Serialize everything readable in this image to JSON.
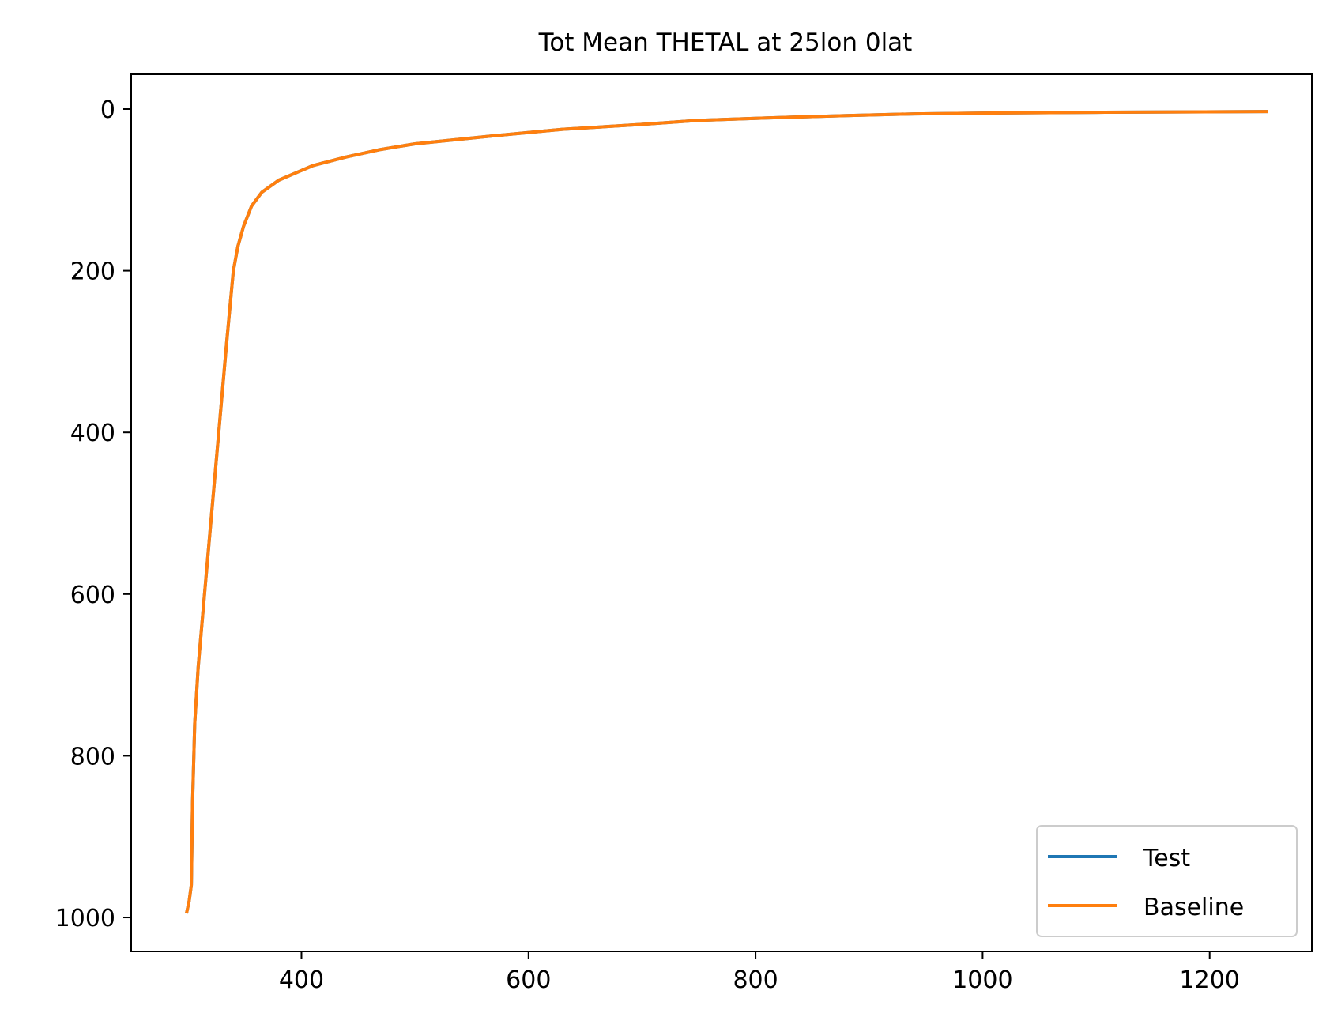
{
  "chart_data": {
    "type": "line",
    "title": "Tot Mean THETAL at 25lon 0lat",
    "xlabel": "",
    "ylabel": "",
    "xlim": [
      250,
      1290
    ],
    "ylim": [
      1042,
      -43
    ],
    "y_inverted": true,
    "xticks": [
      400,
      600,
      800,
      1000,
      1200
    ],
    "yticks": [
      0,
      200,
      400,
      600,
      800,
      1000
    ],
    "xtick_labels": [
      "400",
      "600",
      "800",
      "1000",
      "1200"
    ],
    "ytick_labels": [
      "0",
      "200",
      "400",
      "600",
      "800",
      "1000"
    ],
    "grid": false,
    "legend_position": "lower-right",
    "series": [
      {
        "name": "Test",
        "color": "#1f77b4",
        "x": [
          1250,
          1100,
          1000,
          940,
          880,
          810,
          750,
          700,
          630,
          570,
          500,
          470,
          440,
          410,
          380,
          365,
          356,
          349,
          344,
          340,
          338,
          334,
          329,
          324,
          319,
          314,
          309,
          306,
          304,
          303,
          301,
          299
        ],
        "y": [
          3,
          4,
          5,
          6,
          8,
          11,
          14,
          19,
          25,
          33,
          43,
          50,
          59,
          70,
          88,
          103,
          120,
          145,
          170,
          200,
          230,
          290,
          370,
          450,
          530,
          610,
          690,
          760,
          860,
          960,
          980,
          993
        ]
      },
      {
        "name": "Baseline",
        "color": "#ff7f0e",
        "x": [
          1250,
          1100,
          1000,
          940,
          880,
          810,
          750,
          700,
          630,
          570,
          500,
          470,
          440,
          410,
          380,
          365,
          356,
          349,
          344,
          340,
          338,
          334,
          329,
          324,
          319,
          314,
          309,
          306,
          304,
          303,
          301,
          299
        ],
        "y": [
          3,
          4,
          5,
          6,
          8,
          11,
          14,
          19,
          25,
          33,
          43,
          50,
          59,
          70,
          88,
          103,
          120,
          145,
          170,
          200,
          230,
          290,
          370,
          450,
          530,
          610,
          690,
          760,
          860,
          960,
          980,
          993
        ]
      }
    ]
  }
}
